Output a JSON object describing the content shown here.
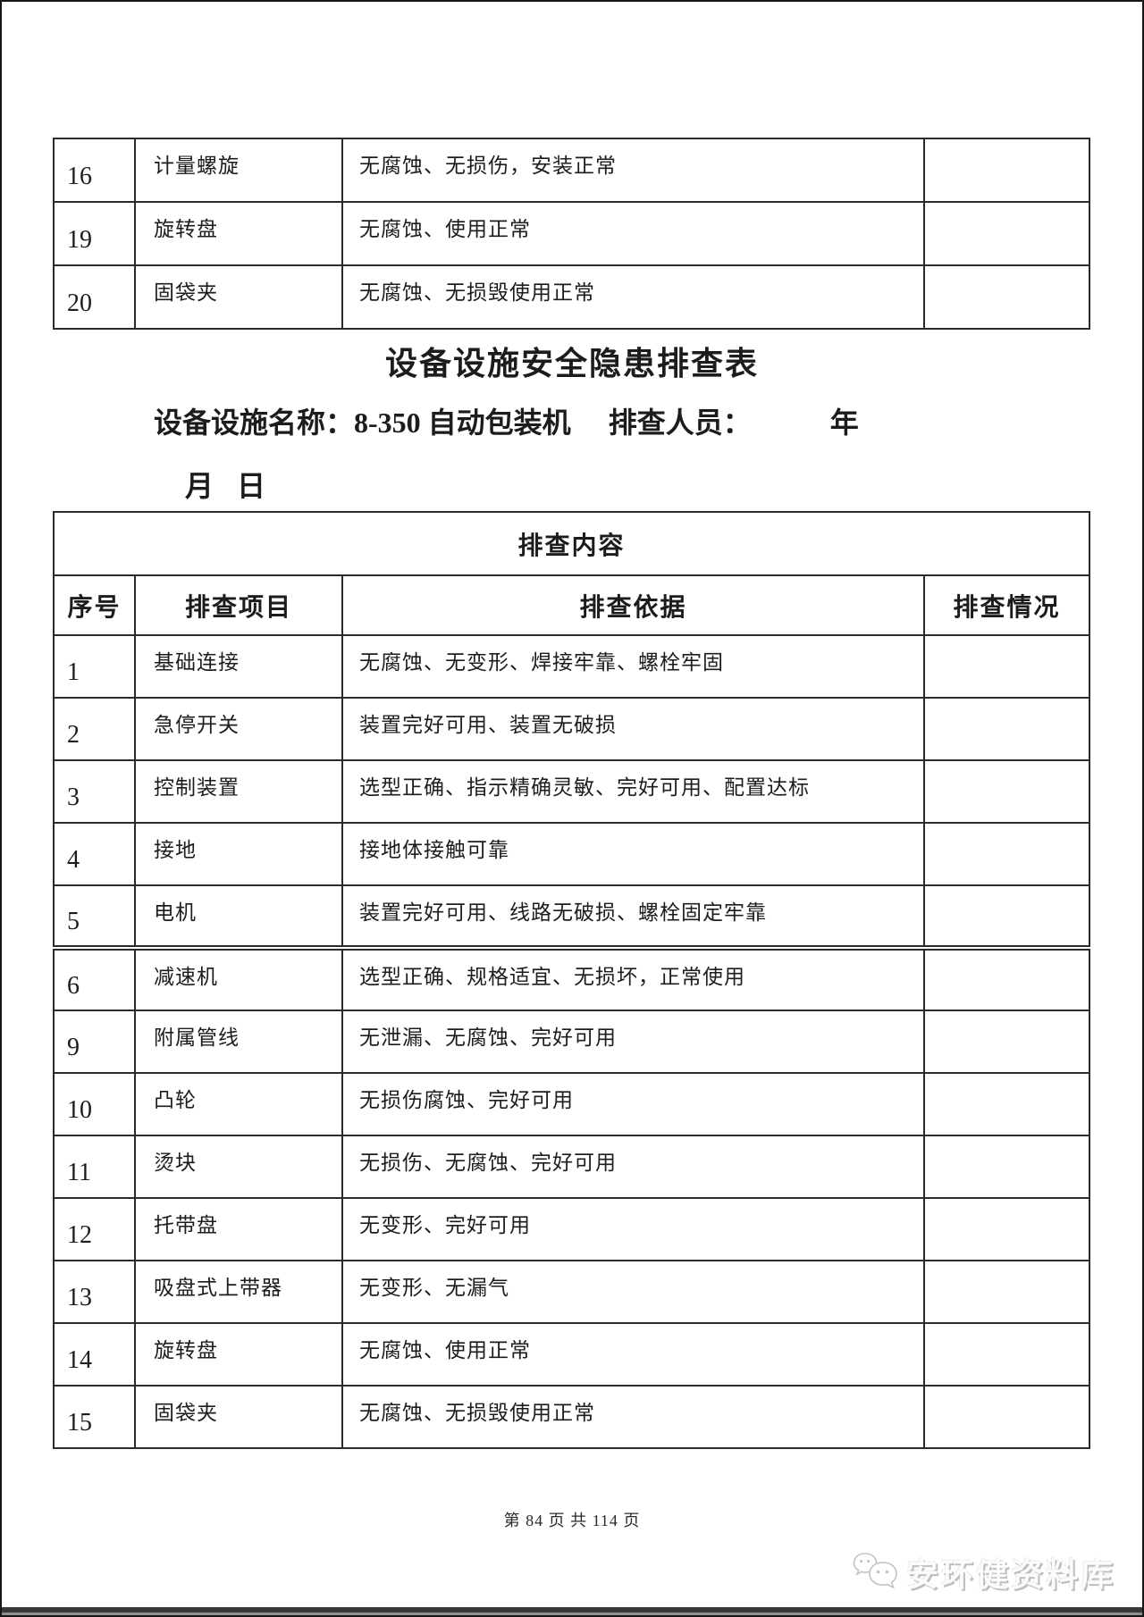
{
  "page": {
    "title": "设备设施安全隐患排查表",
    "subtitle_label": "设备设施名称：",
    "device_name": "8-350 自动包装机",
    "inspector_label": "排查人员：",
    "year_label": "年",
    "month_label": "月",
    "day_label": "日",
    "footer": "第 84 页 共 114 页",
    "watermark": "安环健资料库"
  },
  "colors": {
    "table_border": "#2b2b2b",
    "page_border": "#161616",
    "watermark_text": "#fbfbfb",
    "watermark_shadow": "#bdbdbd",
    "bottom_band": "#383838"
  },
  "top_table": {
    "rows": [
      {
        "no": "16",
        "item": "计量螺旋",
        "basis": "无腐蚀、无损伤，安装正常",
        "status": ""
      },
      {
        "no": "19",
        "item": "旋转盘",
        "basis": "无腐蚀、使用正常",
        "status": ""
      },
      {
        "no": "20",
        "item": "固袋夹",
        "basis": "无腐蚀、无损毁使用正常",
        "status": ""
      }
    ]
  },
  "main_table": {
    "section_header": "排查内容",
    "columns": [
      "序号",
      "排查项目",
      "排查依据",
      "排查情况"
    ],
    "rows": [
      {
        "no": "1",
        "item": "基础连接",
        "basis": "无腐蚀、无变形、焊接牢靠、螺栓牢固",
        "status": ""
      },
      {
        "no": "2",
        "item": "急停开关",
        "basis": "装置完好可用、装置无破损",
        "status": ""
      },
      {
        "no": "3",
        "item": "控制装置",
        "basis": "选型正确、指示精确灵敏、完好可用、配置达标",
        "status": ""
      },
      {
        "no": "4",
        "item": "接地",
        "basis": "接地体接触可靠",
        "status": ""
      },
      {
        "no": "5",
        "item": "电机",
        "basis": "装置完好可用、线路无破损、螺栓固定牢靠",
        "status": ""
      },
      {
        "no": "6",
        "item": "减速机",
        "basis": "选型正确、规格适宜、无损坏，正常使用",
        "status": "",
        "seg_start": true
      },
      {
        "no": "9",
        "item": "附属管线",
        "basis": "无泄漏、无腐蚀、完好可用",
        "status": ""
      },
      {
        "no": "10",
        "item": "凸轮",
        "basis": "无损伤腐蚀、完好可用",
        "status": ""
      },
      {
        "no": "11",
        "item": "烫块",
        "basis": "无损伤、无腐蚀、完好可用",
        "status": ""
      },
      {
        "no": "12",
        "item": "托带盘",
        "basis": "无变形、完好可用",
        "status": ""
      },
      {
        "no": "13",
        "item": "吸盘式上带器",
        "basis": "无变形、无漏气",
        "status": ""
      },
      {
        "no": "14",
        "item": "旋转盘",
        "basis": "无腐蚀、使用正常",
        "status": ""
      },
      {
        "no": "15",
        "item": "固袋夹",
        "basis": "无腐蚀、无损毁使用正常",
        "status": ""
      }
    ]
  }
}
